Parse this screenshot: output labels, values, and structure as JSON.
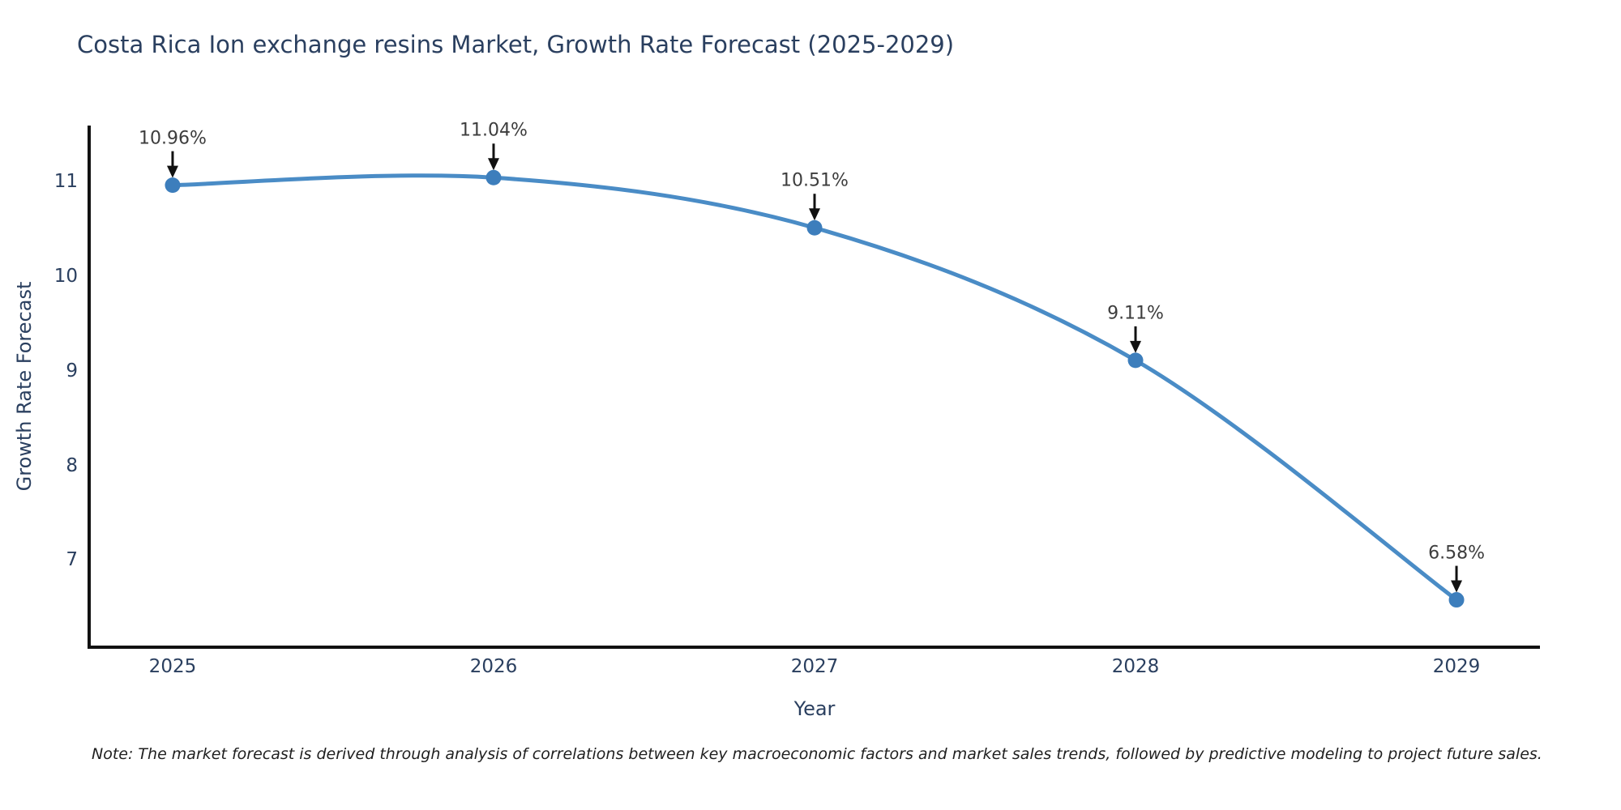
{
  "chart_data": {
    "type": "line",
    "title": "Costa Rica Ion exchange resins Market, Growth Rate Forecast (2025-2029)",
    "xlabel": "Year",
    "ylabel": "Growth Rate Forecast",
    "x": [
      2025,
      2026,
      2027,
      2028,
      2029
    ],
    "values": [
      10.96,
      11.04,
      10.51,
      9.11,
      6.58
    ],
    "point_labels": [
      "10.96%",
      "11.04%",
      "10.51%",
      "9.11%",
      "6.58%"
    ],
    "x_ticks": [
      "2025",
      "2026",
      "2027",
      "2028",
      "2029"
    ],
    "y_ticks": [
      7,
      8,
      9,
      10,
      11
    ],
    "xlim": [
      2024.74,
      2029.26
    ],
    "ylim": [
      6.08,
      11.59
    ],
    "grid": false,
    "legend_position": "none",
    "line_shape": "spline",
    "colors": {
      "line": "#4a8cc6",
      "marker": "#3d7ebc",
      "axis": "#111111",
      "arrow": "#111111",
      "title_text": "#2a3f5f",
      "tick_text": "#2a3f5f",
      "annotation_text": "#3d3d3d"
    },
    "note": "Note: The market forecast is derived through analysis of correlations between key macroeconomic factors and market sales trends, followed by predictive modeling to project future sales."
  }
}
